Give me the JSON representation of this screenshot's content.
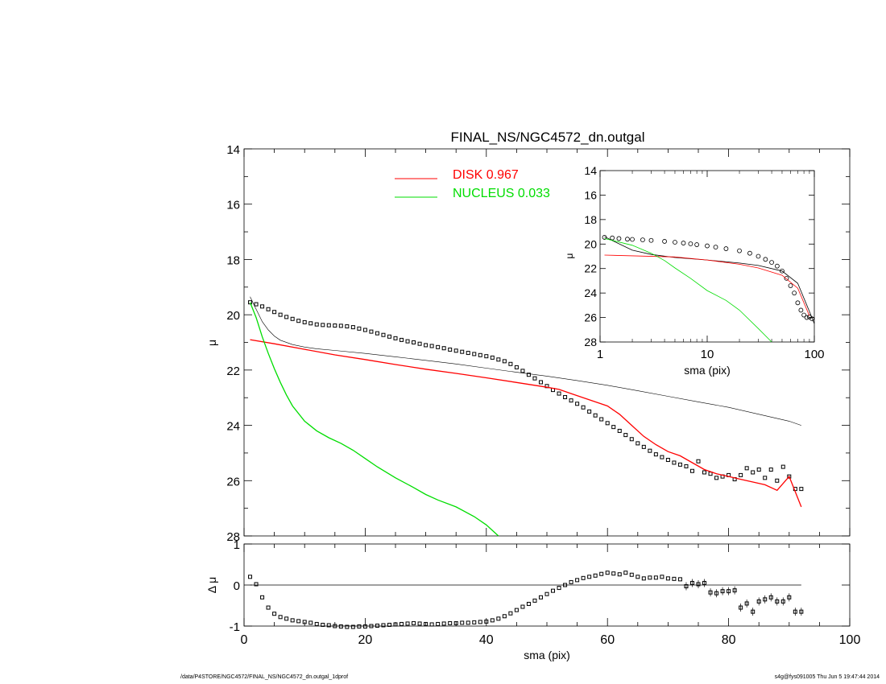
{
  "footer": {
    "path": "/data/P4STORE/NGC4572/FINAL_NS/NGC4572_dn.outgal_1dprof",
    "stamp": "s4g@fys091005  Thu Jun  5 19:47:44 2014"
  },
  "colors": {
    "disk": "#ff0000",
    "nucleus": "#00dd00",
    "data": "#000000",
    "model": "#000000"
  },
  "chart_data": [
    {
      "panel": "main",
      "type": "scatter",
      "title": "FINAL_NS/NGC4572_dn.outgal",
      "xlabel": "",
      "ylabel": "μ",
      "xlim": [
        0,
        100
      ],
      "ylim": [
        28,
        14
      ],
      "yticks": [
        "14",
        "16",
        "18",
        "20",
        "22",
        "24",
        "26",
        "28"
      ],
      "legend": {
        "position": "top-center",
        "entries": [
          "DISK  0.967",
          "NUCLEUS  0.033"
        ]
      },
      "series": [
        {
          "name": "data",
          "style": "open-squares",
          "x": [
            1,
            2,
            3,
            4,
            5,
            6,
            7,
            8,
            9,
            10,
            11,
            12,
            13,
            14,
            15,
            16,
            17,
            18,
            19,
            20,
            21,
            22,
            23,
            24,
            25,
            26,
            27,
            28,
            29,
            30,
            31,
            32,
            33,
            34,
            35,
            36,
            37,
            38,
            39,
            40,
            41,
            42,
            43,
            44,
            45,
            46,
            47,
            48,
            49,
            50,
            51,
            52,
            53,
            54,
            55,
            56,
            57,
            58,
            59,
            60,
            61,
            62,
            63,
            64,
            65,
            66,
            67,
            68,
            69,
            70,
            71,
            72,
            73,
            74,
            75,
            76,
            77,
            78,
            79,
            80,
            81,
            82,
            83,
            84,
            85,
            86,
            87,
            88,
            89,
            90,
            91,
            92
          ],
          "y": [
            19.55,
            19.62,
            19.7,
            19.8,
            19.9,
            20.0,
            20.08,
            20.15,
            20.22,
            20.27,
            20.31,
            20.35,
            20.37,
            20.38,
            20.39,
            20.4,
            20.42,
            20.45,
            20.5,
            20.55,
            20.61,
            20.67,
            20.73,
            20.79,
            20.85,
            20.91,
            20.96,
            21.0,
            21.05,
            21.1,
            21.13,
            21.17,
            21.21,
            21.26,
            21.3,
            21.34,
            21.38,
            21.42,
            21.46,
            21.5,
            21.55,
            21.62,
            21.68,
            21.78,
            21.9,
            22.03,
            22.17,
            22.3,
            22.44,
            22.58,
            22.72,
            22.85,
            22.98,
            23.1,
            23.22,
            23.35,
            23.5,
            23.64,
            23.78,
            23.92,
            24.06,
            24.2,
            24.35,
            24.5,
            24.65,
            24.78,
            24.92,
            25.05,
            25.15,
            25.25,
            25.35,
            25.42,
            25.48,
            25.65,
            25.3,
            25.7,
            25.75,
            25.9,
            25.85,
            25.8,
            25.95,
            25.8,
            25.55,
            25.7,
            25.6,
            25.9,
            25.6,
            26.0,
            25.5,
            25.85,
            26.3,
            26.3
          ],
          "yerr_glyph": "small-square"
        },
        {
          "name": "model",
          "style": "thin-black-line",
          "x": [
            1,
            2,
            3,
            4,
            5,
            6,
            8,
            10,
            12,
            15,
            20,
            25,
            30,
            35,
            40,
            45,
            50,
            55,
            60,
            65,
            70,
            75,
            80,
            85,
            90,
            92
          ],
          "y": [
            19.35,
            19.8,
            20.25,
            20.55,
            20.77,
            20.92,
            21.08,
            21.17,
            21.23,
            21.29,
            21.4,
            21.52,
            21.65,
            21.78,
            21.93,
            22.08,
            22.22,
            22.38,
            22.55,
            22.75,
            22.95,
            23.15,
            23.35,
            23.6,
            23.85,
            24.0
          ]
        },
        {
          "name": "DISK  0.967",
          "style": "red-line",
          "x": [
            1,
            5,
            10,
            15,
            20,
            25,
            30,
            35,
            40,
            45,
            50,
            52,
            54,
            56,
            58,
            60,
            62,
            64,
            66,
            68,
            70,
            72,
            74,
            76,
            78,
            80,
            82,
            84,
            86,
            88,
            90,
            92
          ],
          "y": [
            20.9,
            21.05,
            21.25,
            21.45,
            21.62,
            21.8,
            21.97,
            22.12,
            22.28,
            22.45,
            22.62,
            22.7,
            22.85,
            23.0,
            23.15,
            23.3,
            23.6,
            24.0,
            24.4,
            24.7,
            24.95,
            25.1,
            25.35,
            25.6,
            25.75,
            25.85,
            25.95,
            26.05,
            26.15,
            26.35,
            25.85,
            26.95
          ]
        },
        {
          "name": "NUCLEUS  0.033",
          "style": "green-line",
          "x": [
            1,
            2,
            3,
            4,
            5,
            6,
            7,
            8,
            10,
            12,
            14,
            16,
            18,
            20,
            22,
            25,
            28,
            30,
            32,
            35,
            38,
            40,
            42
          ],
          "y": [
            19.55,
            20.1,
            20.8,
            21.4,
            21.95,
            22.45,
            22.9,
            23.3,
            23.85,
            24.2,
            24.45,
            24.65,
            24.9,
            25.2,
            25.5,
            25.9,
            26.25,
            26.5,
            26.7,
            26.95,
            27.3,
            27.6,
            28.0
          ]
        }
      ]
    },
    {
      "panel": "inset",
      "type": "line",
      "xscale": "log",
      "xlabel": "sma (pix)",
      "ylabel": "μ",
      "xlim": [
        1,
        100
      ],
      "ylim": [
        28,
        14
      ],
      "xticks": [
        "1",
        "10",
        "100"
      ],
      "yticks": [
        "14",
        "16",
        "18",
        "20",
        "22",
        "24",
        "26",
        "28"
      ],
      "series": [
        {
          "name": "data",
          "style": "open-circles",
          "x": [
            1.1,
            1.3,
            1.5,
            1.8,
            2,
            2.5,
            3,
            4,
            5,
            6,
            7,
            8,
            10,
            12,
            15,
            20,
            25,
            30,
            35,
            40,
            45,
            50,
            55,
            60,
            65,
            70,
            75,
            80,
            85,
            90,
            95
          ],
          "y": [
            19.45,
            19.5,
            19.55,
            19.6,
            19.62,
            19.66,
            19.7,
            19.78,
            19.85,
            19.92,
            19.98,
            20.05,
            20.15,
            20.25,
            20.38,
            20.55,
            20.75,
            21.0,
            21.25,
            21.5,
            21.8,
            22.2,
            22.8,
            23.4,
            24.0,
            24.8,
            25.4,
            25.8,
            26.0,
            25.95,
            26.1
          ]
        },
        {
          "name": "model",
          "style": "thin-black-line",
          "x": [
            1.1,
            2,
            3,
            5,
            10,
            20,
            30,
            50,
            70,
            90,
            100
          ],
          "y": [
            19.4,
            20.5,
            20.85,
            21.1,
            21.3,
            21.55,
            21.75,
            22.2,
            23.2,
            25.5,
            26.5
          ]
        },
        {
          "name": "disk",
          "style": "red-line",
          "x": [
            1.1,
            5,
            10,
            20,
            30,
            50,
            70,
            90
          ],
          "y": [
            20.9,
            21.05,
            21.3,
            21.65,
            21.95,
            22.55,
            23.6,
            25.85
          ]
        },
        {
          "name": "nucleus",
          "style": "green-line",
          "x": [
            1.1,
            2,
            3,
            4,
            5,
            7,
            10,
            15,
            20,
            30,
            40
          ],
          "y": [
            19.55,
            20.1,
            20.75,
            21.35,
            21.95,
            22.8,
            23.8,
            24.6,
            25.4,
            26.9,
            28.0
          ]
        }
      ]
    },
    {
      "panel": "residual",
      "type": "scatter",
      "xlabel": "sma (pix)",
      "ylabel": "Δ μ",
      "xlim": [
        0,
        100
      ],
      "ylim": [
        -1,
        1
      ],
      "xticks": [
        "0",
        "20",
        "40",
        "60",
        "80",
        "100"
      ],
      "yticks": [
        "1",
        "0",
        "-1"
      ],
      "series": [
        {
          "name": "residual",
          "style": "open-squares",
          "x": [
            1,
            2,
            3,
            4,
            5,
            6,
            7,
            8,
            9,
            10,
            11,
            12,
            13,
            14,
            15,
            16,
            17,
            18,
            19,
            20,
            21,
            22,
            23,
            24,
            25,
            26,
            27,
            28,
            29,
            30,
            31,
            32,
            33,
            34,
            35,
            36,
            37,
            38,
            39,
            40,
            41,
            42,
            43,
            44,
            45,
            46,
            47,
            48,
            49,
            50,
            51,
            52,
            53,
            54,
            55,
            56,
            57,
            58,
            59,
            60,
            61,
            62,
            63,
            64,
            65,
            66,
            67,
            68,
            69,
            70,
            71,
            72,
            73,
            74,
            75,
            76,
            77,
            78,
            79,
            80,
            81,
            82,
            83,
            84,
            85,
            86,
            87,
            88,
            89,
            90,
            91,
            92
          ],
          "y": [
            0.2,
            0.02,
            -0.3,
            -0.55,
            -0.7,
            -0.78,
            -0.82,
            -0.86,
            -0.88,
            -0.9,
            -0.92,
            -0.95,
            -0.97,
            -0.98,
            -1.0,
            -1.01,
            -1.02,
            -1.02,
            -1.01,
            -1.01,
            -1.0,
            -0.99,
            -0.98,
            -0.97,
            -0.96,
            -0.95,
            -0.94,
            -0.93,
            -0.94,
            -0.95,
            -0.96,
            -0.95,
            -0.94,
            -0.93,
            -0.93,
            -0.92,
            -0.92,
            -0.91,
            -0.9,
            -0.89,
            -0.86,
            -0.82,
            -0.76,
            -0.69,
            -0.61,
            -0.53,
            -0.46,
            -0.38,
            -0.3,
            -0.22,
            -0.14,
            -0.07,
            0.0,
            0.07,
            0.12,
            0.17,
            0.2,
            0.23,
            0.27,
            0.3,
            0.28,
            0.26,
            0.3,
            0.25,
            0.2,
            0.16,
            0.18,
            0.18,
            0.2,
            0.16,
            0.15,
            0.14,
            -0.03,
            0.05,
            0.02,
            0.05,
            -0.18,
            -0.2,
            -0.15,
            -0.15,
            -0.13,
            -0.55,
            -0.45,
            -0.65,
            -0.4,
            -0.35,
            -0.3,
            -0.4,
            -0.4,
            -0.3,
            -0.65,
            -0.65
          ]
        }
      ]
    }
  ]
}
